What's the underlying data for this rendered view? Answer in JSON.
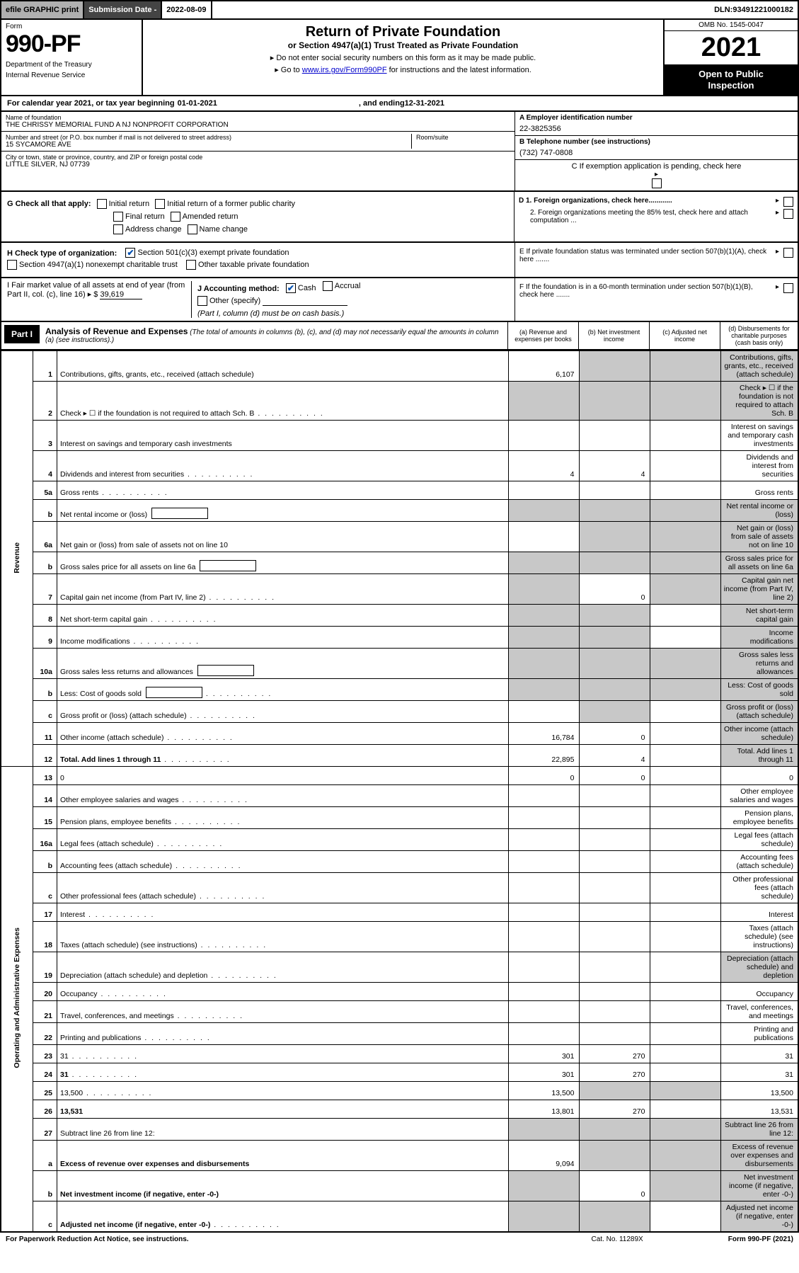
{
  "topbar": {
    "efile_label": "efile GRAPHIC print",
    "sub_date_label": "Submission Date - ",
    "sub_date_value": "2022-08-09",
    "dln_label": "DLN: ",
    "dln_value": "93491221000182"
  },
  "header": {
    "form_word": "Form",
    "form_number": "990-PF",
    "dept1": "Department of the Treasury",
    "dept2": "Internal Revenue Service",
    "title": "Return of Private Foundation",
    "subtitle1": "or Section 4947(a)(1) Trust Treated as Private Foundation",
    "subtitle2": "▸ Do not enter social security numbers on this form as it may be made public.",
    "subtitle3_pre": "▸ Go to ",
    "subtitle3_link": "www.irs.gov/Form990PF",
    "subtitle3_post": " for instructions and the latest information.",
    "omb": "OMB No. 1545-0047",
    "year": "2021",
    "otp1": "Open to Public",
    "otp2": "Inspection"
  },
  "cal": {
    "label": "For calendar year 2021, or tax year beginning ",
    "begin": "01-01-2021",
    "middle": ", and ending ",
    "end": "12-31-2021"
  },
  "id": {
    "name_lbl": "Name of foundation",
    "name_val": "THE CHRISSY MEMORIAL FUND A NJ NONPROFIT CORPORATION",
    "addr_lbl": "Number and street (or P.O. box number if mail is not delivered to street address)",
    "addr_val": "15 SYCAMORE AVE",
    "room_lbl": "Room/suite",
    "city_lbl": "City or town, state or province, country, and ZIP or foreign postal code",
    "city_val": "LITTLE SILVER, NJ  07739",
    "a_lbl": "A Employer identification number",
    "a_val": "22-3825356",
    "b_lbl": "B Telephone number (see instructions)",
    "b_val": "(732) 747-0808",
    "c_lbl": "C If exemption application is pending, check here"
  },
  "g": {
    "label": "G Check all that apply:",
    "opts": [
      "Initial return",
      "Initial return of a former public charity",
      "Final return",
      "Amended return",
      "Address change",
      "Name change"
    ]
  },
  "h": {
    "label": "H Check type of organization:",
    "opt1": "Section 501(c)(3) exempt private foundation",
    "opt2": "Section 4947(a)(1) nonexempt charitable trust",
    "opt3": "Other taxable private foundation"
  },
  "i": {
    "label": "I Fair market value of all assets at end of year (from Part II, col. (c), line 16) ▸ $",
    "value": "39,619"
  },
  "j": {
    "label": "J Accounting method:",
    "cash": "Cash",
    "accrual": "Accrual",
    "other": "Other (specify)",
    "note": "(Part I, column (d) must be on cash basis.)"
  },
  "d": {
    "d1": "D 1. Foreign organizations, check here............",
    "d2": "2. Foreign organizations meeting the 85% test, check here and attach computation ...",
    "e": "E  If private foundation status was terminated under section 507(b)(1)(A), check here .......",
    "f": "F  If the foundation is in a 60-month termination under section 507(b)(1)(B), check here ......."
  },
  "part1": {
    "tag": "Part I",
    "title": "Analysis of Revenue and Expenses",
    "note": " (The total of amounts in columns (b), (c), and (d) may not necessarily equal the amounts in column (a) (see instructions).)",
    "col_a": "(a) Revenue and expenses per books",
    "col_b": "(b) Net investment income",
    "col_c": "(c) Adjusted net income",
    "col_d": "(d) Disbursements for charitable purposes (cash basis only)"
  },
  "sides": {
    "rev": "Revenue",
    "exp": "Operating and Administrative Expenses"
  },
  "rows": [
    {
      "n": "1",
      "d": "Contributions, gifts, grants, etc., received (attach schedule)",
      "a": "6,107",
      "shade_bcd": true
    },
    {
      "n": "2",
      "d": "Check ▸ ☐ if the foundation is not required to attach Sch. B",
      "dots": true,
      "shade_all": true
    },
    {
      "n": "3",
      "d": "Interest on savings and temporary cash investments"
    },
    {
      "n": "4",
      "d": "Dividends and interest from securities",
      "dots": true,
      "a": "4",
      "b": "4"
    },
    {
      "n": "5a",
      "d": "Gross rents",
      "dots": true
    },
    {
      "n": "b",
      "d": "Net rental income or (loss)",
      "inline_box": true,
      "shade_all": true
    },
    {
      "n": "6a",
      "d": "Net gain or (loss) from sale of assets not on line 10",
      "shade_bcd": true
    },
    {
      "n": "b",
      "d": "Gross sales price for all assets on line 6a",
      "inline_box": true,
      "shade_all": true
    },
    {
      "n": "7",
      "d": "Capital gain net income (from Part IV, line 2)",
      "dots": true,
      "shade_a": true,
      "b": "0",
      "shade_cd": true
    },
    {
      "n": "8",
      "d": "Net short-term capital gain",
      "dots": true,
      "shade_ab": true,
      "shade_d": true
    },
    {
      "n": "9",
      "d": "Income modifications",
      "dots": true,
      "shade_ab": true,
      "shade_d": true
    },
    {
      "n": "10a",
      "d": "Gross sales less returns and allowances",
      "inline_box": true,
      "shade_all": true
    },
    {
      "n": "b",
      "d": "Less: Cost of goods sold",
      "dots": true,
      "inline_box": true,
      "shade_all": true
    },
    {
      "n": "c",
      "d": "Gross profit or (loss) (attach schedule)",
      "dots": true,
      "shade_b": true,
      "shade_d": true
    },
    {
      "n": "11",
      "d": "Other income (attach schedule)",
      "dots": true,
      "a": "16,784",
      "b": "0",
      "shade_d": true
    },
    {
      "n": "12",
      "d": "Total. Add lines 1 through 11",
      "dots": true,
      "bold": true,
      "a": "22,895",
      "b": "4",
      "shade_d": true
    },
    {
      "n": "13",
      "d": "0",
      "a": "0",
      "b": "0"
    },
    {
      "n": "14",
      "d": "Other employee salaries and wages",
      "dots": true
    },
    {
      "n": "15",
      "d": "Pension plans, employee benefits",
      "dots": true
    },
    {
      "n": "16a",
      "d": "Legal fees (attach schedule)",
      "dots": true
    },
    {
      "n": "b",
      "d": "Accounting fees (attach schedule)",
      "dots": true
    },
    {
      "n": "c",
      "d": "Other professional fees (attach schedule)",
      "dots": true
    },
    {
      "n": "17",
      "d": "Interest",
      "dots": true
    },
    {
      "n": "18",
      "d": "Taxes (attach schedule) (see instructions)",
      "dots": true
    },
    {
      "n": "19",
      "d": "Depreciation (attach schedule) and depletion",
      "dots": true,
      "shade_d": true
    },
    {
      "n": "20",
      "d": "Occupancy",
      "dots": true
    },
    {
      "n": "21",
      "d": "Travel, conferences, and meetings",
      "dots": true
    },
    {
      "n": "22",
      "d": "Printing and publications",
      "dots": true
    },
    {
      "n": "23",
      "d": "31",
      "dots": true,
      "a": "301",
      "b": "270"
    },
    {
      "n": "24",
      "d": "31",
      "dots": true,
      "bold": true,
      "a": "301",
      "b": "270"
    },
    {
      "n": "25",
      "d": "13,500",
      "dots": true,
      "a": "13,500",
      "shade_bc": true
    },
    {
      "n": "26",
      "d": "13,531",
      "bold": true,
      "a": "13,801",
      "b": "270"
    },
    {
      "n": "27",
      "d": "Subtract line 26 from line 12:",
      "shade_all": true
    },
    {
      "n": "a",
      "d": "Excess of revenue over expenses and disbursements",
      "bold": true,
      "a": "9,094",
      "shade_bcd": true
    },
    {
      "n": "b",
      "d": "Net investment income (if negative, enter -0-)",
      "bold": true,
      "shade_a": true,
      "b": "0",
      "shade_cd": true
    },
    {
      "n": "c",
      "d": "Adjusted net income (if negative, enter -0-)",
      "dots": true,
      "bold": true,
      "shade_ab": true,
      "shade_d": true
    }
  ],
  "footer": {
    "left": "For Paperwork Reduction Act Notice, see instructions.",
    "mid": "Cat. No. 11289X",
    "right": "Form 990-PF (2021)"
  },
  "colors": {
    "link": "#0000cc",
    "shade": "#c8c8c8",
    "check": "#0050b0"
  }
}
